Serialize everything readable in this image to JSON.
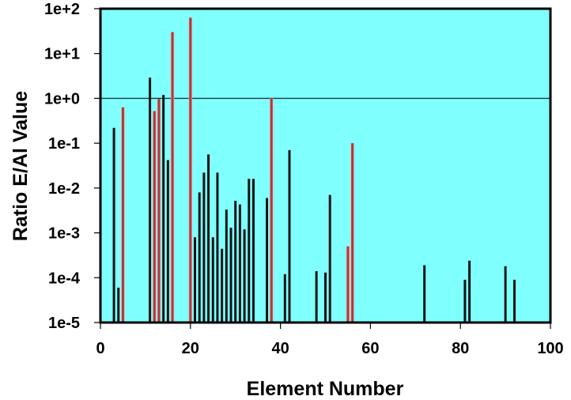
{
  "chart_data": {
    "type": "bar",
    "title": "",
    "xlabel": "Element Number",
    "ylabel": "Ratio E/Al Value",
    "xlim": [
      0,
      100
    ],
    "ylim": [
      1e-05,
      100
    ],
    "yscale": "log",
    "x_ticks": [
      0,
      20,
      40,
      60,
      80,
      100
    ],
    "x_tick_labels": [
      "0",
      "20",
      "40",
      "60",
      "80",
      "100"
    ],
    "y_ticks": [
      1e-05,
      0.0001,
      0.001,
      0.01,
      0.1,
      1,
      10,
      100
    ],
    "y_tick_labels": [
      "1e-5",
      "1e-4",
      "1e-3",
      "1e-2",
      "1e-1",
      "1e+0",
      "1e+1",
      "1e+2"
    ],
    "reference_line": {
      "y": 1,
      "label": ""
    },
    "grid": false,
    "legend": null,
    "background_color": "#80FFFF",
    "series": [
      {
        "name": "black",
        "color": "#0a1414",
        "points": [
          {
            "x": 3,
            "y": 0.22
          },
          {
            "x": 4,
            "y": 6e-05
          },
          {
            "x": 11,
            "y": 2.9
          },
          {
            "x": 14,
            "y": 1.2
          },
          {
            "x": 15,
            "y": 0.042
          },
          {
            "x": 21,
            "y": 0.0008
          },
          {
            "x": 22,
            "y": 0.008
          },
          {
            "x": 23,
            "y": 0.022
          },
          {
            "x": 24,
            "y": 0.056
          },
          {
            "x": 25,
            "y": 0.0008
          },
          {
            "x": 26,
            "y": 0.022
          },
          {
            "x": 27,
            "y": 0.00044
          },
          {
            "x": 28,
            "y": 0.0033
          },
          {
            "x": 29,
            "y": 0.0013
          },
          {
            "x": 30,
            "y": 0.0052
          },
          {
            "x": 31,
            "y": 0.0043
          },
          {
            "x": 32,
            "y": 0.0012
          },
          {
            "x": 33,
            "y": 0.016
          },
          {
            "x": 34,
            "y": 0.016
          },
          {
            "x": 37,
            "y": 0.006
          },
          {
            "x": 41,
            "y": 0.00012
          },
          {
            "x": 42,
            "y": 0.07
          },
          {
            "x": 48,
            "y": 0.00014
          },
          {
            "x": 50,
            "y": 0.00013
          },
          {
            "x": 51,
            "y": 0.007
          },
          {
            "x": 72,
            "y": 0.00019
          },
          {
            "x": 81,
            "y": 9e-05
          },
          {
            "x": 82,
            "y": 0.00024
          },
          {
            "x": 90,
            "y": 0.00018
          },
          {
            "x": 92,
            "y": 9e-05
          }
        ]
      },
      {
        "name": "red",
        "color": "#b03a3a",
        "points": [
          {
            "x": 5,
            "y": 0.63
          },
          {
            "x": 12,
            "y": 0.52
          },
          {
            "x": 13,
            "y": 0.97
          },
          {
            "x": 16,
            "y": 30
          },
          {
            "x": 20,
            "y": 63
          },
          {
            "x": 38,
            "y": 1.0
          },
          {
            "x": 55,
            "y": 0.0005
          },
          {
            "x": 56,
            "y": 0.1
          }
        ]
      }
    ]
  }
}
